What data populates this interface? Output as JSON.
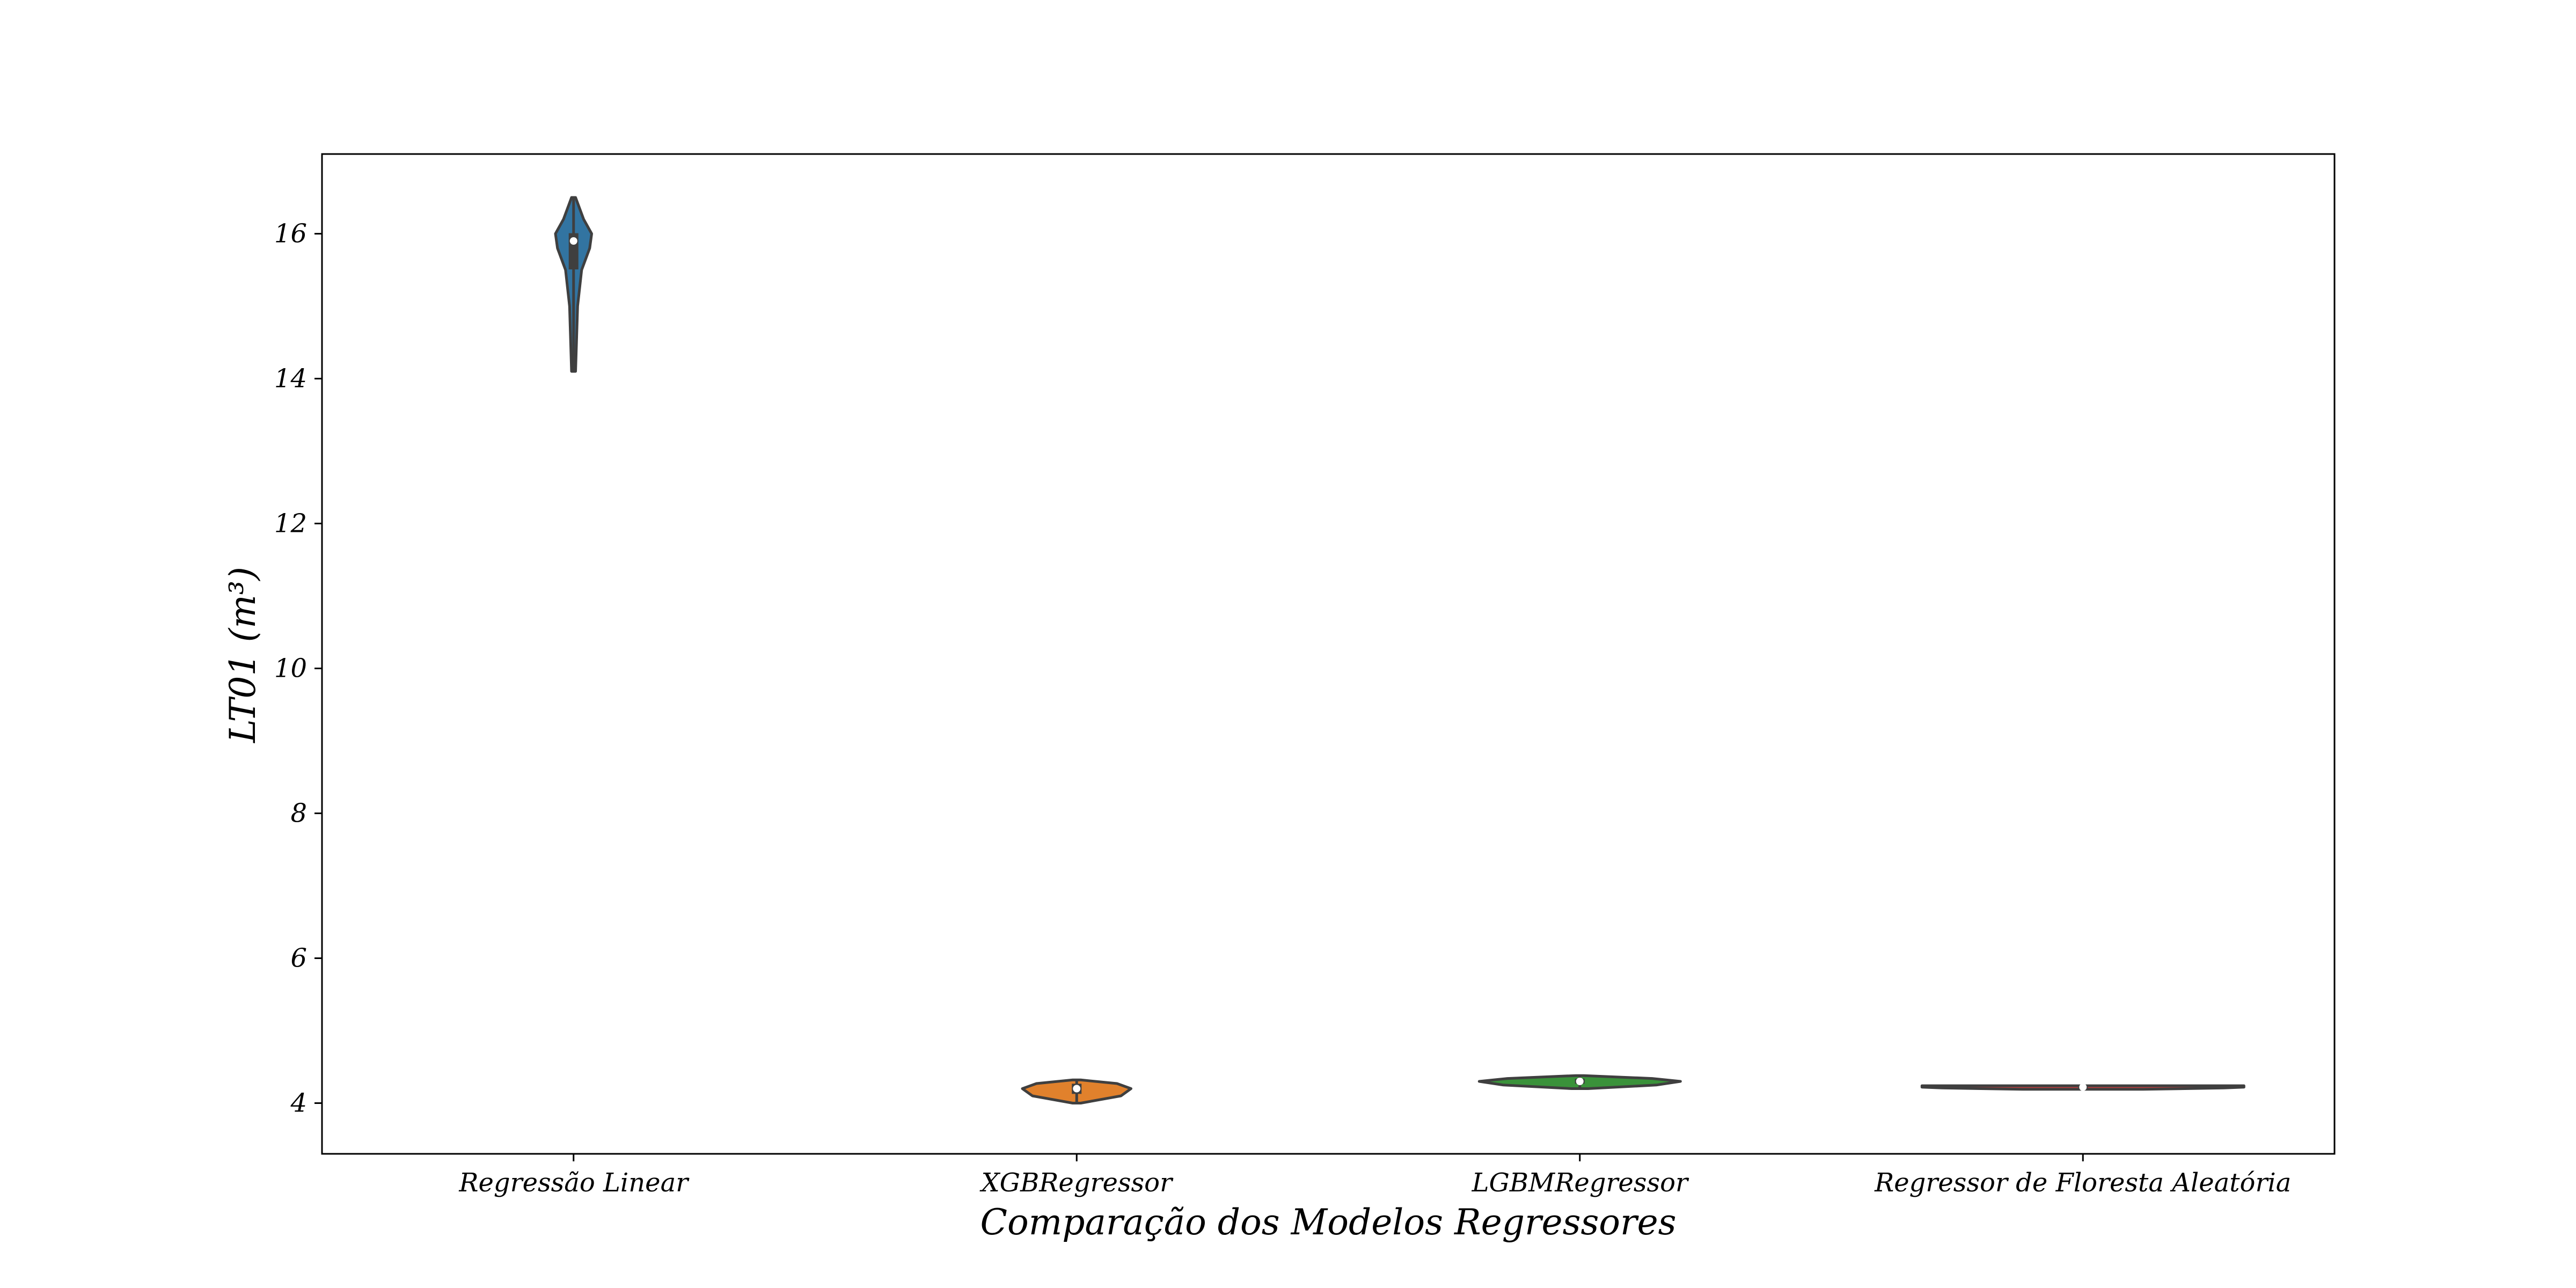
{
  "chart_data": {
    "type": "violin",
    "title": "",
    "xlabel": "Comparação dos Modelos Regressores",
    "ylabel": "LT01 (m³)",
    "ylim": [
      3.3,
      17.1
    ],
    "yticks": [
      4,
      6,
      8,
      10,
      12,
      14,
      16
    ],
    "grid": false,
    "categories": [
      "Regressão Linear",
      "XGBRegressor",
      "LGBMRegressor",
      "Regressor de Floresta Aleatória"
    ],
    "series": [
      {
        "category": "Regressão Linear",
        "color": "#3274a1",
        "min": 14.1,
        "q1": 15.5,
        "median": 15.9,
        "q3": 16.0,
        "max": 16.5,
        "profile": [
          [
            14.1,
            0.01
          ],
          [
            15.0,
            0.02
          ],
          [
            15.5,
            0.04
          ],
          [
            15.8,
            0.08
          ],
          [
            16.0,
            0.09
          ],
          [
            16.2,
            0.05
          ],
          [
            16.5,
            0.01
          ]
        ]
      },
      {
        "category": "XGBRegressor",
        "color": "#e1812c",
        "min": 4.0,
        "q1": 4.12,
        "median": 4.2,
        "q3": 4.26,
        "max": 4.32,
        "profile": [
          [
            4.0,
            0.02
          ],
          [
            4.1,
            0.22
          ],
          [
            4.2,
            0.27
          ],
          [
            4.27,
            0.2
          ],
          [
            4.32,
            0.02
          ]
        ]
      },
      {
        "category": "LGBMRegressor",
        "color": "#3a923a",
        "min": 4.2,
        "q1": 4.26,
        "median": 4.3,
        "q3": 4.33,
        "max": 4.38,
        "profile": [
          [
            4.2,
            0.04
          ],
          [
            4.25,
            0.38
          ],
          [
            4.3,
            0.5
          ],
          [
            4.34,
            0.36
          ],
          [
            4.38,
            0.02
          ]
        ]
      },
      {
        "category": "Regressor de Floresta Aleatória",
        "color": "#c03d3e",
        "min": 4.19,
        "q1": 4.21,
        "median": 4.22,
        "q3": 4.23,
        "max": 4.24,
        "profile": [
          [
            4.19,
            0.3
          ],
          [
            4.21,
            0.7
          ],
          [
            4.22,
            0.8
          ],
          [
            4.23,
            0.8
          ],
          [
            4.24,
            0.8
          ]
        ]
      }
    ]
  }
}
